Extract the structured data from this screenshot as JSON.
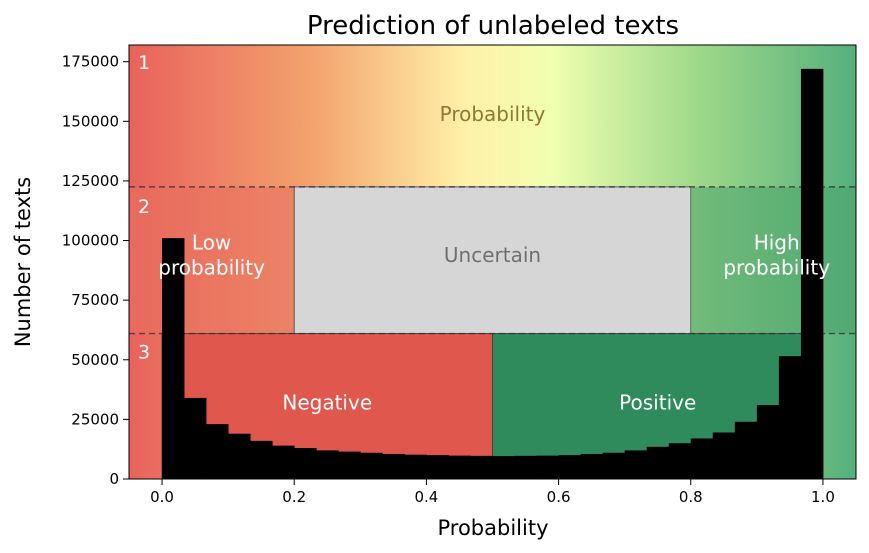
{
  "chart_data": {
    "type": "bar",
    "title": "Prediction of unlabeled texts",
    "xlabel": "Probability",
    "ylabel": "Number of texts",
    "xlim": [
      -0.05,
      1.05
    ],
    "ylim": [
      0,
      182000
    ],
    "x_ticks": [
      {
        "value": 0.0,
        "label": "0.0"
      },
      {
        "value": 0.2,
        "label": "0.2"
      },
      {
        "value": 0.4,
        "label": "0.4"
      },
      {
        "value": 0.6,
        "label": "0.6"
      },
      {
        "value": 0.8,
        "label": "0.8"
      },
      {
        "value": 1.0,
        "label": "1.0"
      }
    ],
    "y_ticks": [
      {
        "value": 0,
        "label": "0"
      },
      {
        "value": 25000,
        "label": "25000"
      },
      {
        "value": 50000,
        "label": "50000"
      },
      {
        "value": 75000,
        "label": "75000"
      },
      {
        "value": 100000,
        "label": "100000"
      },
      {
        "value": 125000,
        "label": "125000"
      },
      {
        "value": 150000,
        "label": "150000"
      },
      {
        "value": 175000,
        "label": "175000"
      }
    ],
    "bin_width": 0.0333,
    "bins_start": [
      0.0,
      0.0333,
      0.0667,
      0.1,
      0.1333,
      0.1667,
      0.2,
      0.2333,
      0.2667,
      0.3,
      0.3333,
      0.3667,
      0.4,
      0.4333,
      0.4667,
      0.5,
      0.5333,
      0.5667,
      0.6,
      0.6333,
      0.6667,
      0.7,
      0.7333,
      0.7667,
      0.8,
      0.8333,
      0.8667,
      0.9,
      0.9333,
      0.9667
    ],
    "values": [
      101000,
      34000,
      23000,
      19000,
      16000,
      14000,
      13000,
      12000,
      11500,
      11000,
      10500,
      10200,
      10000,
      9800,
      9700,
      9600,
      9700,
      9800,
      10000,
      10500,
      11000,
      12000,
      13500,
      15000,
      17000,
      19500,
      24000,
      31000,
      51500,
      172000
    ],
    "bar_color": "#000000",
    "bands": {
      "level_1_y": [
        122500,
        182000
      ],
      "level_2_y": [
        61000,
        122500
      ],
      "level_3_y": [
        0,
        61000
      ],
      "level_1_labels": [
        {
          "text": "Probability",
          "x": 0.5,
          "y": 153000,
          "color": "#8a7a3a"
        }
      ],
      "level_2_regions": [
        {
          "x": [
            -0.05,
            0.2
          ],
          "text": "Low\nprobability",
          "label_x": 0.075,
          "label_y": 94000,
          "color": "#e8705f",
          "text_color": "#ffffff"
        },
        {
          "x": [
            0.2,
            0.8
          ],
          "text": "Uncertain",
          "label_x": 0.5,
          "label_y": 94000,
          "color": "#d6d6d6",
          "text_color": "#707070"
        },
        {
          "x": [
            0.8,
            1.05
          ],
          "text": "High\nprobability",
          "label_x": 0.93,
          "label_y": 94000,
          "color": "#4ca36c",
          "text_color": "#ffffff"
        }
      ],
      "level_3_regions": [
        {
          "x": [
            0.0,
            0.5
          ],
          "text": "Negative",
          "label_x": 0.25,
          "label_y": 32000,
          "color": "#e0574d",
          "text_color": "#ffffff"
        },
        {
          "x": [
            0.5,
            1.0
          ],
          "text": "Positive",
          "label_x": 0.75,
          "label_y": 32000,
          "color": "#2f8a5c",
          "text_color": "#ffffff"
        }
      ],
      "level_markers": [
        "1",
        "2",
        "3"
      ]
    },
    "grid": false,
    "gradient_colors": [
      "#e8625c",
      "#f3a26d",
      "#fff0a8",
      "#f0ffb0",
      "#9fd98a",
      "#55b07c"
    ]
  }
}
